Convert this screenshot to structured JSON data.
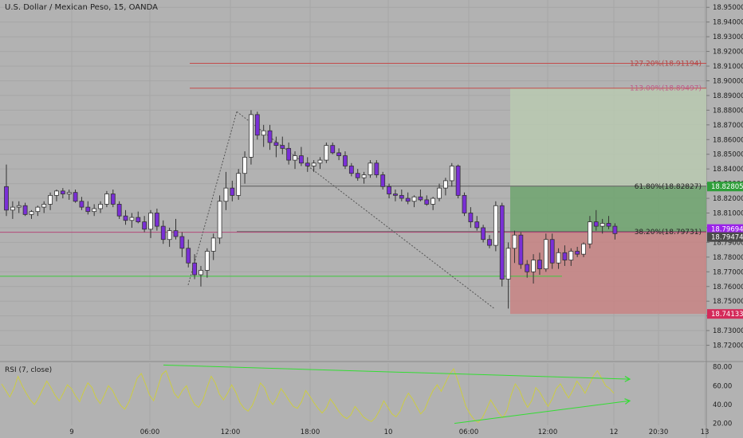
{
  "header": {
    "title": "U.S. Dollar / Mexican Peso, 15, OANDA"
  },
  "rsi": {
    "title": "RSI (7, close)"
  },
  "colors": {
    "background": "#b2b2b2",
    "candle_up": "#ffffff",
    "candle_down": "#7a2fd6",
    "wick": "#333333",
    "grid": "#a6a6a6",
    "support_line": "#3cc83c",
    "fib_line": "#5a5a5a",
    "ext_line": "#c44b4b",
    "target_zone": "#6ea56e",
    "target_zone_light": "#b8c8b0",
    "stop_zone": "#c88484",
    "rsi_line": "#cccc44",
    "trend_arrow": "#33dd33",
    "last_price_bg": "#9b23e8",
    "bid_price_bg": "#4a4a4a",
    "target_label_bg": "#2f9e3a",
    "stop_label_bg": "#d42a5a"
  },
  "chart_data": {
    "type": "candlestick",
    "symbol": "U.S. Dollar / Mexican Peso",
    "interval": "15",
    "source": "OANDA",
    "ylim": [
      18.71,
      18.955
    ],
    "price_axis_labels": [
      "18.95000",
      "18.94000",
      "18.93000",
      "18.92000",
      "18.91000",
      "18.90000",
      "18.89000",
      "18.88000",
      "18.87000",
      "18.86000",
      "18.85000",
      "18.84000",
      "18.83000",
      "18.82000",
      "18.81000",
      "18.80000",
      "18.79000",
      "18.78000",
      "18.77000",
      "18.76000",
      "18.75000",
      "18.74000",
      "18.73000",
      "18.72000"
    ],
    "time_axis_labels": [
      "9",
      "06:00",
      "12:00",
      "18:00",
      "10",
      "06:00",
      "12:00",
      "12",
      "20:30",
      "13"
    ],
    "price_tags": [
      {
        "label": "18.82805",
        "value": 18.82805,
        "role": "target"
      },
      {
        "label": "18.79694",
        "value": 18.79694,
        "role": "last"
      },
      {
        "label": "18.79474",
        "value": 18.79474,
        "role": "bid"
      },
      {
        "label": "18.74133",
        "value": 18.74133,
        "role": "stop"
      }
    ],
    "fibonacci_levels": [
      {
        "label": "127.20%(18.91194)",
        "value": 18.91194
      },
      {
        "label": "113.00%(18.89497)",
        "value": 18.89497
      },
      {
        "label": "61.80%(18.82827)",
        "value": 18.82827
      },
      {
        "label": "38.20%(18.79731)",
        "value": 18.79731
      }
    ],
    "support_level": 18.767,
    "position": {
      "entry": 18.7969,
      "target": 18.82805,
      "stop": 18.74133,
      "target_extension": 18.895
    },
    "candles": [
      [
        18.828,
        18.843,
        18.808,
        18.812
      ],
      [
        18.812,
        18.818,
        18.806,
        18.814
      ],
      [
        18.814,
        18.818,
        18.81,
        18.815
      ],
      [
        18.815,
        18.817,
        18.808,
        18.809
      ],
      [
        18.809,
        18.812,
        18.806,
        18.811
      ],
      [
        18.811,
        18.815,
        18.808,
        18.814
      ],
      [
        18.814,
        18.818,
        18.81,
        18.816
      ],
      [
        18.816,
        18.824,
        18.812,
        18.822
      ],
      [
        18.822,
        18.826,
        18.818,
        18.825
      ],
      [
        18.825,
        18.827,
        18.82,
        18.823
      ],
      [
        18.823,
        18.826,
        18.819,
        18.824
      ],
      [
        18.824,
        18.826,
        18.817,
        18.818
      ],
      [
        18.818,
        18.821,
        18.812,
        18.814
      ],
      [
        18.814,
        18.818,
        18.809,
        18.811
      ],
      [
        18.811,
        18.816,
        18.808,
        18.813
      ],
      [
        18.813,
        18.818,
        18.81,
        18.816
      ],
      [
        18.816,
        18.825,
        18.814,
        18.823
      ],
      [
        18.823,
        18.826,
        18.814,
        18.816
      ],
      [
        18.816,
        18.818,
        18.806,
        18.808
      ],
      [
        18.808,
        18.812,
        18.802,
        18.805
      ],
      [
        18.805,
        18.81,
        18.8,
        18.807
      ],
      [
        18.807,
        18.811,
        18.803,
        18.804
      ],
      [
        18.804,
        18.808,
        18.797,
        18.799
      ],
      [
        18.799,
        18.812,
        18.793,
        18.81
      ],
      [
        18.81,
        18.813,
        18.798,
        18.801
      ],
      [
        18.801,
        18.805,
        18.789,
        18.792
      ],
      [
        18.792,
        18.8,
        18.787,
        18.798
      ],
      [
        18.798,
        18.806,
        18.792,
        18.794
      ],
      [
        18.794,
        18.797,
        18.78,
        18.786
      ],
      [
        18.786,
        18.792,
        18.773,
        18.776
      ],
      [
        18.776,
        18.782,
        18.765,
        18.768
      ],
      [
        18.768,
        18.774,
        18.76,
        18.771
      ],
      [
        18.771,
        18.786,
        18.766,
        18.784
      ],
      [
        18.784,
        18.796,
        18.778,
        18.793
      ],
      [
        18.793,
        18.822,
        18.789,
        18.818
      ],
      [
        18.818,
        18.838,
        18.812,
        18.827
      ],
      [
        18.827,
        18.832,
        18.818,
        18.822
      ],
      [
        18.822,
        18.84,
        18.819,
        18.837
      ],
      [
        18.837,
        18.852,
        18.83,
        18.848
      ],
      [
        18.848,
        18.88,
        18.843,
        18.877
      ],
      [
        18.877,
        18.879,
        18.86,
        18.863
      ],
      [
        18.863,
        18.87,
        18.855,
        18.866
      ],
      [
        18.866,
        18.87,
        18.853,
        18.858
      ],
      [
        18.858,
        18.862,
        18.848,
        18.856
      ],
      [
        18.856,
        18.862,
        18.85,
        18.854
      ],
      [
        18.854,
        18.858,
        18.843,
        18.846
      ],
      [
        18.846,
        18.852,
        18.84,
        18.849
      ],
      [
        18.849,
        18.855,
        18.842,
        18.844
      ],
      [
        18.844,
        18.848,
        18.838,
        18.842
      ],
      [
        18.842,
        18.846,
        18.838,
        18.844
      ],
      [
        18.844,
        18.848,
        18.84,
        18.846
      ],
      [
        18.846,
        18.858,
        18.844,
        18.856
      ],
      [
        18.856,
        18.858,
        18.85,
        18.851
      ],
      [
        18.851,
        18.854,
        18.846,
        18.849
      ],
      [
        18.849,
        18.852,
        18.84,
        18.842
      ],
      [
        18.842,
        18.844,
        18.835,
        18.837
      ],
      [
        18.837,
        18.84,
        18.832,
        18.834
      ],
      [
        18.834,
        18.838,
        18.83,
        18.836
      ],
      [
        18.836,
        18.846,
        18.834,
        18.844
      ],
      [
        18.844,
        18.846,
        18.834,
        18.836
      ],
      [
        18.836,
        18.838,
        18.826,
        18.828
      ],
      [
        18.828,
        18.83,
        18.82,
        18.823
      ],
      [
        18.823,
        18.826,
        18.818,
        18.822
      ],
      [
        18.822,
        18.826,
        18.818,
        18.82
      ],
      [
        18.82,
        18.824,
        18.816,
        18.818
      ],
      [
        18.818,
        18.822,
        18.814,
        18.821
      ],
      [
        18.821,
        18.826,
        18.818,
        18.819
      ],
      [
        18.819,
        18.822,
        18.815,
        18.816
      ],
      [
        18.816,
        18.821,
        18.812,
        18.82
      ],
      [
        18.82,
        18.83,
        18.818,
        18.827
      ],
      [
        18.827,
        18.834,
        18.822,
        18.832
      ],
      [
        18.832,
        18.844,
        18.828,
        18.842
      ],
      [
        18.842,
        18.843,
        18.82,
        18.822
      ],
      [
        18.822,
        18.824,
        18.808,
        18.81
      ],
      [
        18.81,
        18.814,
        18.8,
        18.804
      ],
      [
        18.804,
        18.808,
        18.798,
        18.8
      ],
      [
        18.8,
        18.802,
        18.79,
        18.792
      ],
      [
        18.792,
        18.795,
        18.786,
        18.788
      ],
      [
        18.788,
        18.818,
        18.784,
        18.815
      ],
      [
        18.815,
        18.817,
        18.76,
        18.765
      ],
      [
        18.765,
        18.79,
        18.745,
        18.786
      ],
      [
        18.786,
        18.798,
        18.776,
        18.795
      ],
      [
        18.795,
        18.797,
        18.772,
        18.775
      ],
      [
        18.775,
        18.778,
        18.766,
        18.77
      ],
      [
        18.77,
        18.782,
        18.762,
        18.778
      ],
      [
        18.778,
        18.783,
        18.768,
        18.772
      ],
      [
        18.772,
        18.796,
        18.77,
        18.792
      ],
      [
        18.792,
        18.796,
        18.772,
        18.776
      ],
      [
        18.776,
        18.786,
        18.772,
        18.783
      ],
      [
        18.783,
        18.788,
        18.774,
        18.778
      ],
      [
        18.778,
        18.786,
        18.774,
        18.784
      ],
      [
        18.784,
        18.787,
        18.78,
        18.782
      ],
      [
        18.782,
        18.79,
        18.78,
        18.789
      ],
      [
        18.789,
        18.808,
        18.786,
        18.804
      ],
      [
        18.804,
        18.812,
        18.798,
        18.801
      ],
      [
        18.801,
        18.806,
        18.796,
        18.803
      ],
      [
        18.803,
        18.808,
        18.799,
        18.801
      ],
      [
        18.801,
        18.803,
        18.792,
        18.796
      ]
    ],
    "rsi": {
      "title": "RSI (7, close)",
      "axis_labels": [
        "80.00",
        "60.00",
        "40.00",
        "20.00"
      ],
      "ylim": [
        18,
        84
      ],
      "values": [
        62,
        55,
        48,
        57,
        70,
        60,
        52,
        45,
        40,
        47,
        56,
        65,
        58,
        50,
        44,
        52,
        61,
        57,
        49,
        43,
        54,
        63,
        58,
        47,
        41,
        50,
        60,
        55,
        46,
        39,
        35,
        43,
        55,
        68,
        73,
        62,
        50,
        44,
        58,
        72,
        76,
        64,
        52,
        47,
        55,
        60,
        48,
        40,
        37,
        45,
        58,
        70,
        63,
        51,
        45,
        52,
        61,
        53,
        42,
        36,
        33,
        39,
        50,
        63,
        58,
        46,
        40,
        47,
        57,
        51,
        44,
        38,
        36,
        43,
        55,
        49,
        42,
        36,
        31,
        36,
        46,
        40,
        33,
        28,
        25,
        29,
        38,
        33,
        27,
        24,
        22,
        26,
        34,
        44,
        37,
        30,
        27,
        33,
        44,
        52,
        46,
        38,
        30,
        35,
        46,
        55,
        61,
        54,
        63,
        72,
        78,
        66,
        52,
        38,
        30,
        24,
        21,
        26,
        35,
        45,
        38,
        31,
        26,
        34,
        50,
        62,
        56,
        45,
        37,
        44,
        58,
        53,
        45,
        38,
        46,
        57,
        62,
        54,
        47,
        55,
        65,
        59,
        52,
        61,
        70,
        76,
        68,
        60,
        57,
        52
      ],
      "trendlines": [
        {
          "from": [
            205,
            82
          ],
          "to": [
            790,
            67
          ]
        },
        {
          "from": [
            570,
            20
          ],
          "to": [
            790,
            44
          ]
        }
      ]
    }
  }
}
